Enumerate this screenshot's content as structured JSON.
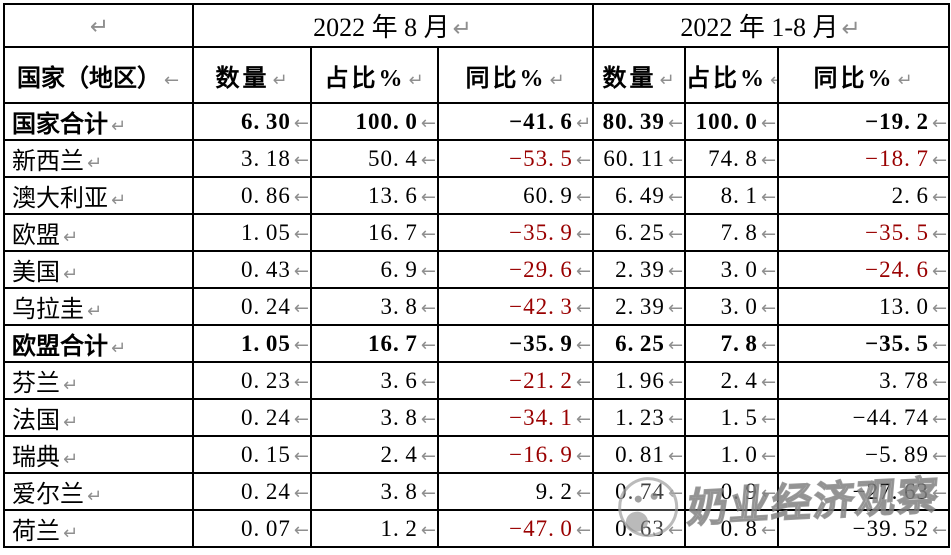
{
  "colors": {
    "negative_red": "#990000",
    "format_mark_gray": "#8f8f8f",
    "border_black": "#000000",
    "watermark_gray": "#9e9e9e"
  },
  "header1": {
    "left_mark": "↵",
    "aug_label": "2022 年 8 月",
    "aug_mark": "↵",
    "ytd_label": "2022 年 1-8 月",
    "ytd_mark": "↵"
  },
  "header2": {
    "country": "国家（地区）",
    "country_mark": "←",
    "cols": [
      {
        "t": "数量",
        "m": "↵"
      },
      {
        "t": "占比%",
        "m": "↵"
      },
      {
        "t": "同比%",
        "m": "↵"
      },
      {
        "t": "数量",
        "m": "↵"
      },
      {
        "t": "占比%",
        "m": "←"
      },
      {
        "t": "同比%",
        "m": "↵"
      }
    ]
  },
  "table": {
    "rows": [
      {
        "name": "国家合计",
        "bold": true,
        "cells": [
          {
            "v": "6.30"
          },
          {
            "v": "100.0"
          },
          {
            "v": "-41.6",
            "m": "↵"
          },
          {
            "v": "80.39"
          },
          {
            "v": "100.0"
          },
          {
            "v": "-19.2"
          }
        ]
      },
      {
        "name": "新西兰",
        "cells": [
          {
            "v": "3.18"
          },
          {
            "v": "50.4"
          },
          {
            "v": "-53.5",
            "red": true
          },
          {
            "v": "60.11"
          },
          {
            "v": "74.8"
          },
          {
            "v": "-18.7",
            "red": true
          }
        ]
      },
      {
        "name": "澳大利亚",
        "cells": [
          {
            "v": "0.86"
          },
          {
            "v": "13.6"
          },
          {
            "v": "60.9"
          },
          {
            "v": "6.49"
          },
          {
            "v": "8.1"
          },
          {
            "v": "2.6"
          }
        ]
      },
      {
        "name": "欧盟",
        "cells": [
          {
            "v": "1.05"
          },
          {
            "v": "16.7"
          },
          {
            "v": "-35.9",
            "red": true
          },
          {
            "v": "6.25"
          },
          {
            "v": "7.8"
          },
          {
            "v": "-35.5",
            "red": true
          }
        ]
      },
      {
        "name": "美国",
        "cells": [
          {
            "v": "0.43"
          },
          {
            "v": "6.9"
          },
          {
            "v": "-29.6",
            "red": true
          },
          {
            "v": "2.39"
          },
          {
            "v": "3.0"
          },
          {
            "v": "-24.6",
            "red": true
          }
        ]
      },
      {
        "name": "乌拉圭",
        "cells": [
          {
            "v": "0.24"
          },
          {
            "v": "3.8"
          },
          {
            "v": "-42.3",
            "red": true
          },
          {
            "v": "2.39"
          },
          {
            "v": "3.0"
          },
          {
            "v": "13.0"
          }
        ]
      },
      {
        "name": "欧盟合计",
        "bold": true,
        "cells": [
          {
            "v": "1.05"
          },
          {
            "v": "16.7"
          },
          {
            "v": "-35.9"
          },
          {
            "v": "6.25"
          },
          {
            "v": "7.8"
          },
          {
            "v": "-35.5"
          }
        ]
      },
      {
        "name": "芬兰",
        "cells": [
          {
            "v": "0.23"
          },
          {
            "v": "3.6"
          },
          {
            "v": "-21.2",
            "red": true
          },
          {
            "v": "1.96"
          },
          {
            "v": "2.4"
          },
          {
            "v": "3.78"
          }
        ]
      },
      {
        "name": "法国",
        "cells": [
          {
            "v": "0.24"
          },
          {
            "v": "3.8"
          },
          {
            "v": "-34.1",
            "red": true
          },
          {
            "v": "1.23"
          },
          {
            "v": "1.5"
          },
          {
            "v": "-44.74"
          }
        ]
      },
      {
        "name": "瑞典",
        "cells": [
          {
            "v": "0.15"
          },
          {
            "v": "2.4"
          },
          {
            "v": "-16.9",
            "red": true
          },
          {
            "v": "0.81"
          },
          {
            "v": "1.0"
          },
          {
            "v": "-5.89"
          }
        ]
      },
      {
        "name": "爱尔兰",
        "cells": [
          {
            "v": "0.24"
          },
          {
            "v": "3.8"
          },
          {
            "v": "9.2"
          },
          {
            "v": "0.74"
          },
          {
            "v": "0.9"
          },
          {
            "v": "-27.63"
          }
        ]
      },
      {
        "name": "荷兰",
        "cells": [
          {
            "v": "0.07"
          },
          {
            "v": "1.2"
          },
          {
            "v": "-47.0",
            "red": true
          },
          {
            "v": "0.63"
          },
          {
            "v": "0.8"
          },
          {
            "v": "-39.52"
          }
        ]
      }
    ]
  },
  "watermark": {
    "text": "奶业经济观察",
    "logo": "mascot-circle-logo"
  }
}
